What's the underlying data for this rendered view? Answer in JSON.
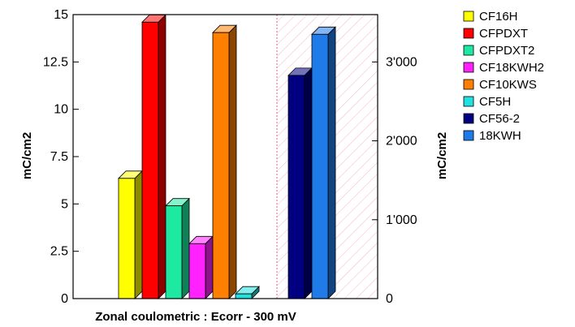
{
  "chart_data": {
    "type": "bar",
    "xlabel": "Zonal coulometric : Ecorr - 300 mV",
    "ylabel": "mC/cm2",
    "y2label": "mC/cm2",
    "ylim": [
      0,
      15
    ],
    "y2lim": [
      0,
      3600
    ],
    "yticks": [
      "0",
      "2.5",
      "5",
      "7.5",
      "10",
      "12.5",
      "15"
    ],
    "y2ticks": [
      "0",
      "1'000",
      "2'000",
      "3'000"
    ],
    "grid": false,
    "legend_position": "right",
    "secondary_region_hatched": true,
    "series": [
      {
        "name": "CF16H",
        "value": 6.35,
        "axis": "left",
        "color": "#ffff00"
      },
      {
        "name": "CFPDXT",
        "value": 14.6,
        "axis": "left",
        "color": "#ff0000"
      },
      {
        "name": "CFPDXT2",
        "value": 4.9,
        "axis": "left",
        "color": "#1de9a0"
      },
      {
        "name": "CF18KWH2",
        "value": 2.9,
        "axis": "left",
        "color": "#ff22ff"
      },
      {
        "name": "CF10KWS",
        "value": 14.05,
        "axis": "left",
        "color": "#ff7f00"
      },
      {
        "name": "CF5H",
        "value": 0.25,
        "axis": "left",
        "color": "#20e0e0"
      },
      {
        "name": "CF56-2",
        "value": 2830,
        "axis": "right",
        "color": "#000080"
      },
      {
        "name": "18KWH",
        "value": 3350,
        "axis": "right",
        "color": "#1e7be8"
      }
    ]
  }
}
